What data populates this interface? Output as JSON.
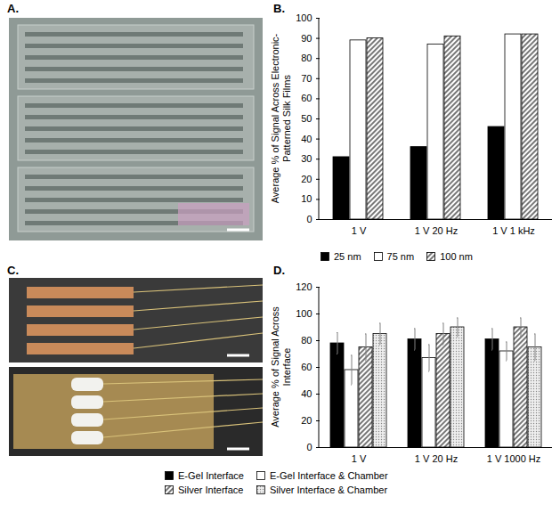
{
  "photo_panels": [
    {
      "panel_label": "A."
    },
    {
      "panel_label": "C."
    }
  ],
  "chart_data": [
    {
      "type": "bar",
      "panel_label": "B.",
      "y_label": "Average % of Signal Across Electronic-Patterned Silk Films",
      "categories": [
        "1 V",
        "1 V 20 Hz",
        "1 V 1 kHz"
      ],
      "series": [
        {
          "name": "25 nm",
          "color": "#000000",
          "marker": "solid",
          "values": [
            31,
            36,
            46
          ]
        },
        {
          "name": "75 nm",
          "color": "#ffffff",
          "marker": "solid",
          "values": [
            89,
            87,
            92
          ]
        },
        {
          "name": "100 nm",
          "color": "#555555",
          "marker": "diagonal",
          "values": [
            90,
            91,
            92
          ]
        }
      ],
      "ylim": [
        0,
        100
      ],
      "yticks": [
        0,
        10,
        20,
        30,
        40,
        50,
        60,
        70,
        80,
        90,
        100
      ],
      "grid": false,
      "legend": "bottom"
    },
    {
      "type": "bar",
      "panel_label": "D.",
      "y_label": "Average % of Signal Across Interface",
      "categories": [
        "1 V",
        "1 V 20 Hz",
        "1 V 1000 Hz"
      ],
      "series": [
        {
          "name": "E-Gel Interface",
          "color": "#000000",
          "marker": "solid",
          "values": [
            78,
            81,
            81
          ],
          "errors": [
            8,
            8,
            8
          ]
        },
        {
          "name": "E-Gel Interface & Chamber",
          "color": "#ffffff",
          "marker": "solid",
          "values": [
            58,
            67,
            72
          ],
          "errors": [
            11,
            10,
            7
          ]
        },
        {
          "name": "Silver Interface",
          "color": "#555555",
          "marker": "diagonal",
          "values": [
            75,
            85,
            90
          ],
          "errors": [
            10,
            8,
            7
          ]
        },
        {
          "name": "Silver Interface & Chamber",
          "color": "#888888",
          "marker": "dotted",
          "values": [
            85,
            90,
            75
          ],
          "errors": [
            8,
            7,
            10
          ]
        }
      ],
      "ylim": [
        0,
        120
      ],
      "yticks": [
        0,
        20,
        40,
        60,
        80,
        100,
        120
      ],
      "grid": false,
      "legend": "bottom"
    }
  ]
}
